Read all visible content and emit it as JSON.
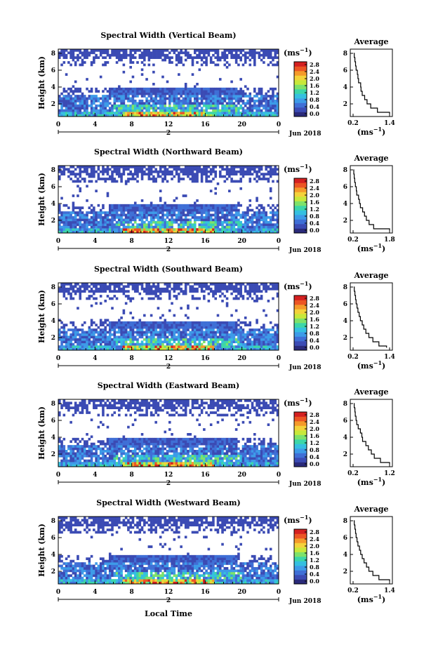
{
  "figure": {
    "xlabel": "Local Time",
    "date_label": "Jun 2018",
    "day_label": "2",
    "x_ticks": [
      "0",
      "4",
      "8",
      "12",
      "16",
      "20",
      "0"
    ],
    "y_ticks": [
      "2",
      "4",
      "6",
      "8"
    ],
    "ylabel": "Height (km)",
    "colorbar_unit": "(ms",
    "colorbar_unit_exp": "−1",
    "colorbar_ticks": [
      "0.0",
      "0.4",
      "0.8",
      "1.2",
      "1.6",
      "2.0",
      "2.4",
      "2.8"
    ],
    "avg_title": "Average",
    "avg_y_ticks": [
      "2",
      "4",
      "6",
      "8"
    ],
    "avg_xlabel": "(ms",
    "avg_xlabel_exp": "−1",
    "colormap": [
      "#2a2a7a",
      "#3b4bb4",
      "#3f6fd6",
      "#3d9be8",
      "#35c0e0",
      "#3cd6a8",
      "#7ee26a",
      "#c8e83a",
      "#f4d23a",
      "#f59a2a",
      "#ec5524",
      "#d42020"
    ]
  },
  "chart_data": [
    {
      "type": "heatmap",
      "title": "Spectral Width (Vertical Beam)",
      "x_range_hours": [
        0,
        24
      ],
      "y_range_km": [
        0.5,
        8.5
      ],
      "avg_xlim": [
        0.2,
        1.4
      ],
      "avg_xticks": [
        "0.2",
        "1.4"
      ],
      "avg_profile": {
        "height_km": [
          0.8,
          1,
          1.5,
          2,
          2.5,
          3,
          3.5,
          4,
          4.5,
          5,
          5.5,
          6,
          6.5,
          7,
          7.5,
          8
        ],
        "width_ms": [
          1.4,
          1.0,
          0.78,
          0.66,
          0.58,
          0.5,
          0.46,
          0.45,
          0.38,
          0.36,
          0.34,
          0.3,
          0.28,
          0.26,
          0.24,
          0.22
        ]
      }
    },
    {
      "type": "heatmap",
      "title": "Spectral Width (Northward Beam)",
      "x_range_hours": [
        0,
        24
      ],
      "y_range_km": [
        0.5,
        8.5
      ],
      "avg_xlim": [
        0.2,
        1.8
      ],
      "avg_xticks": [
        "0.2",
        "1.8"
      ],
      "avg_profile": {
        "height_km": [
          0.8,
          1,
          1.5,
          2,
          2.5,
          3,
          3.5,
          4,
          4.5,
          5,
          5.5,
          6,
          6.5,
          7,
          7.5,
          8
        ],
        "width_ms": [
          1.8,
          1.1,
          0.9,
          0.78,
          0.7,
          0.62,
          0.52,
          0.48,
          0.44,
          0.36,
          0.34,
          0.3,
          0.27,
          0.25,
          0.23,
          0.22
        ]
      }
    },
    {
      "type": "heatmap",
      "title": "Spectral Width (Southward Beam)",
      "x_range_hours": [
        0,
        24
      ],
      "y_range_km": [
        0.5,
        8.5
      ],
      "avg_xlim": [
        0.2,
        1.4
      ],
      "avg_xticks": [
        "0.2",
        "1.4"
      ],
      "avg_profile": {
        "height_km": [
          0.8,
          1,
          1.5,
          2,
          2.5,
          3,
          3.5,
          4,
          4.5,
          5,
          5.5,
          6,
          6.5,
          7,
          7.5,
          8
        ],
        "width_ms": [
          1.3,
          1.05,
          0.85,
          0.72,
          0.62,
          0.55,
          0.5,
          0.44,
          0.4,
          0.36,
          0.33,
          0.3,
          0.28,
          0.26,
          0.24,
          0.22
        ]
      }
    },
    {
      "type": "heatmap",
      "title": "Spectral Width (Eastward Beam)",
      "x_range_hours": [
        0,
        24
      ],
      "y_range_km": [
        0.5,
        8.5
      ],
      "avg_xlim": [
        0.2,
        1.2
      ],
      "avg_xticks": [
        "0.2",
        "1.2"
      ],
      "avg_profile": {
        "height_km": [
          0.8,
          1,
          1.5,
          2,
          2.5,
          3,
          3.5,
          4,
          4.5,
          5,
          5.5,
          6,
          6.5,
          7,
          7.5,
          8
        ],
        "width_ms": [
          1.2,
          0.95,
          0.78,
          0.7,
          0.62,
          0.55,
          0.46,
          0.44,
          0.4,
          0.34,
          0.3,
          0.28,
          0.26,
          0.25,
          0.23,
          0.22
        ]
      }
    },
    {
      "type": "heatmap",
      "title": "Spectral Width (Westward Beam)",
      "x_range_hours": [
        0,
        24
      ],
      "y_range_km": [
        0.5,
        8.5
      ],
      "avg_xlim": [
        0.2,
        1.4
      ],
      "avg_xticks": [
        "0.2",
        "1.4"
      ],
      "avg_profile": {
        "height_km": [
          0.8,
          1,
          1.5,
          2,
          2.5,
          3,
          3.5,
          4,
          4.5,
          5,
          5.5,
          6,
          6.5,
          7,
          7.5,
          8
        ],
        "width_ms": [
          1.4,
          1.05,
          0.85,
          0.72,
          0.64,
          0.56,
          0.5,
          0.45,
          0.41,
          0.36,
          0.33,
          0.3,
          0.28,
          0.26,
          0.24,
          0.22
        ]
      }
    }
  ]
}
